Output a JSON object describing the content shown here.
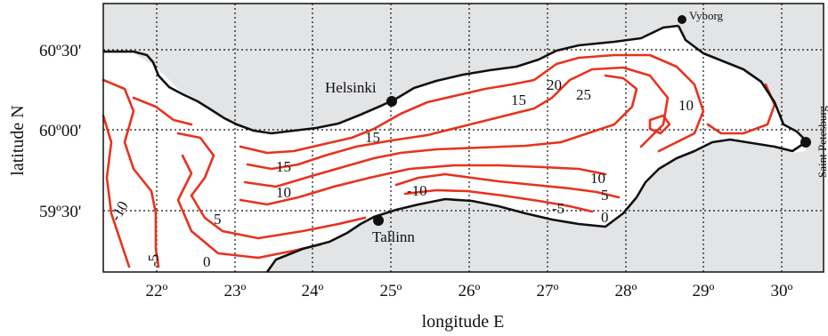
{
  "map": {
    "x_axis_title": "longitude E",
    "y_axis_title": "latitude N",
    "x_ticks": [
      "22º",
      "23º",
      "24º",
      "25º",
      "26º",
      "27º",
      "28º",
      "29º",
      "30º"
    ],
    "y_ticks": [
      "60º30'",
      "60º00'",
      "59º30'"
    ],
    "cities": [
      {
        "name": "Helsinki"
      },
      {
        "name": "Tallinn"
      },
      {
        "name": "Vyborg"
      },
      {
        "name": "Saint Petesburg"
      }
    ],
    "contour_labels": [
      "15",
      "20",
      "25",
      "10",
      "15",
      "15",
      "10",
      "-10",
      "10",
      "5",
      "-5",
      "0",
      "5",
      "0",
      "-10",
      "-5"
    ],
    "colors": {
      "land": "#e3e4e6",
      "sea": "#ffffff",
      "contour": "#e8321e",
      "coastline": "#111111"
    }
  }
}
